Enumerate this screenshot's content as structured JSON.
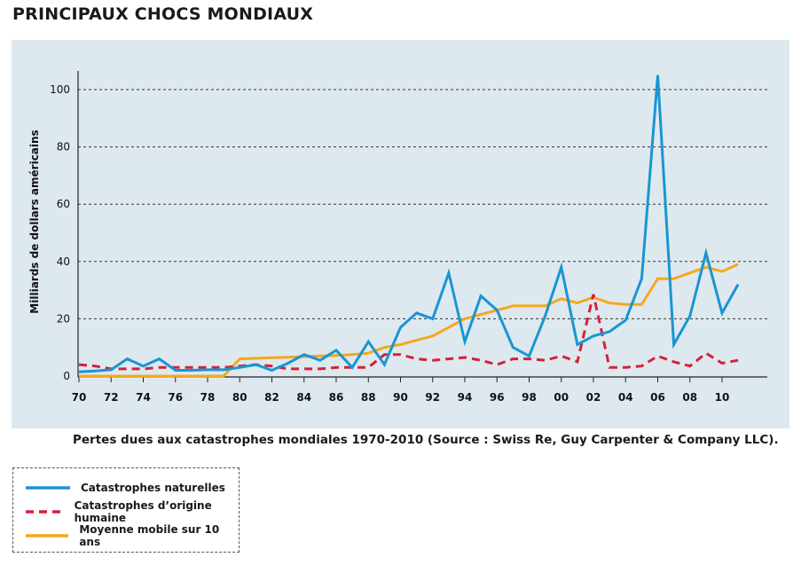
{
  "title": "PRINCIPAUX CHOCS MONDIAUX",
  "caption": "Pertes dues aux catastrophes mondiales 1970-2010 (Source : Swiss Re, Guy Carpenter & Company LLC).",
  "colors": {
    "panel_bg": "#dde9ef",
    "natural": "#1a95d3",
    "human": "#d6203a",
    "average": "#f5a81c",
    "grid": "#333333"
  },
  "legend": [
    {
      "label": "Catastrophes naturelles",
      "series": 0
    },
    {
      "label": "Catastrophes d’origine humaine",
      "series": 1
    },
    {
      "label": "Moyenne mobile sur 10 ans",
      "series": 2
    }
  ],
  "chart_data": {
    "type": "line",
    "title": "PRINCIPAUX CHOCS MONDIAUX",
    "ylabel": "Milliards de dollars américains",
    "xlabel": "",
    "ylim": [
      0,
      105
    ],
    "xlim": [
      1970,
      2012
    ],
    "yticks": [
      0,
      20,
      40,
      60,
      80,
      100
    ],
    "xticks": [
      1970,
      1972,
      1974,
      1976,
      1978,
      1980,
      1982,
      1984,
      1986,
      1988,
      1990,
      1992,
      1994,
      1996,
      1998,
      2000,
      2002,
      2004,
      2006,
      2008,
      2010
    ],
    "xtick_labels": [
      "70",
      "72",
      "74",
      "76",
      "78",
      "80",
      "82",
      "84",
      "86",
      "88",
      "90",
      "92",
      "94",
      "96",
      "98",
      "00",
      "02",
      "04",
      "06",
      "08",
      "10"
    ],
    "grid": "horizontal dashed",
    "x": [
      1970,
      1971,
      1972,
      1973,
      1974,
      1975,
      1976,
      1977,
      1978,
      1979,
      1980,
      1981,
      1982,
      1983,
      1984,
      1985,
      1986,
      1987,
      1988,
      1989,
      1990,
      1991,
      1992,
      1993,
      1994,
      1995,
      1996,
      1997,
      1998,
      1999,
      2000,
      2001,
      2002,
      2003,
      2004,
      2005,
      2006,
      2007,
      2008,
      2009,
      2010,
      2011
    ],
    "series": [
      {
        "name": "Catastrophes naturelles",
        "values": [
          1.5,
          1.8,
          2.2,
          6,
          3.5,
          6,
          2,
          2,
          2.2,
          2.2,
          3,
          4,
          2,
          4.5,
          7.5,
          5.5,
          9,
          3,
          12,
          4,
          17,
          22,
          20,
          36,
          12,
          28,
          23,
          10,
          7,
          21,
          38,
          11,
          14,
          15.5,
          19.5,
          34,
          105,
          11,
          21,
          43,
          22,
          32
        ]
      },
      {
        "name": "Catastrophes d’origine humaine",
        "values": [
          4,
          3.5,
          2.5,
          2.5,
          2.5,
          3,
          3,
          3,
          3,
          3,
          3.5,
          4,
          3.5,
          2.5,
          2.5,
          2.5,
          3,
          3,
          3,
          7.5,
          7.5,
          6,
          5.5,
          6,
          6.5,
          5.5,
          4,
          6,
          6,
          5.5,
          7,
          5,
          28.5,
          3,
          3,
          3.5,
          7,
          5,
          3.5,
          8,
          4.5,
          5.5
        ]
      },
      {
        "name": "Moyenne mobile sur 10 ans",
        "values": [
          0,
          0,
          0,
          0,
          0,
          0,
          0,
          0,
          0,
          0,
          6,
          6.2,
          6.4,
          6.6,
          6.8,
          7,
          7.2,
          7.5,
          8,
          10,
          11,
          12.5,
          14,
          17,
          20,
          21.5,
          23,
          24.5,
          24.5,
          24.5,
          27,
          25.5,
          27.5,
          25.5,
          25,
          25,
          34,
          34,
          36,
          38,
          36.5,
          39
        ]
      }
    ]
  }
}
